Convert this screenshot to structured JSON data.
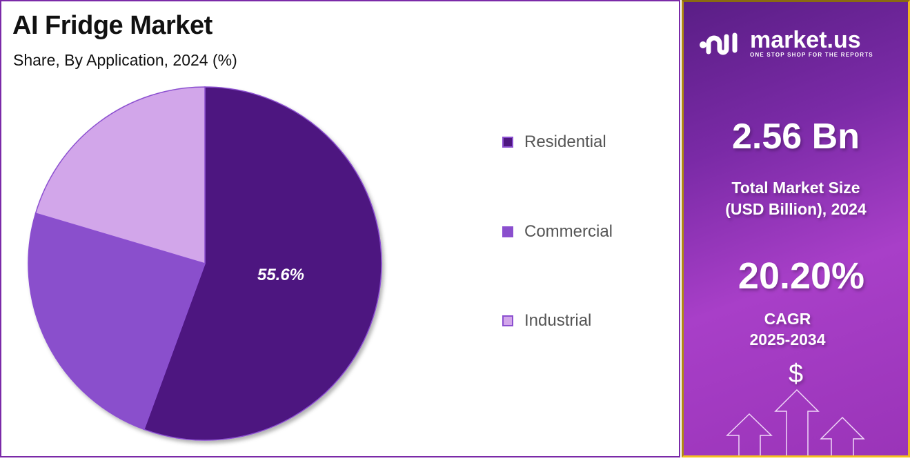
{
  "header": {
    "title": "AI Fridge Market",
    "subtitle": "Share, By Application, 2024 (%)"
  },
  "legend": [
    {
      "label": "Residential",
      "color": "#4e1780"
    },
    {
      "label": "Commercial",
      "color": "#8a4fcc"
    },
    {
      "label": "Industrial",
      "color": "#d2a6ea"
    }
  ],
  "pie_label": "55.6%",
  "sidebar": {
    "brand": "market.us",
    "tagline": "ONE STOP SHOP FOR THE REPORTS",
    "market_size": "2.56 Bn",
    "market_size_label_1": "Total Market Size",
    "market_size_label_2": "(USD Billion), 2024",
    "cagr": "20.20%",
    "cagr_label": "CAGR",
    "cagr_period": "2025-2034",
    "dollar": "$"
  },
  "colors": {
    "accent": "#7b2aa8",
    "gold_border": "#f0b820"
  },
  "chart_data": {
    "type": "pie",
    "title": "AI Fridge Market",
    "subtitle": "Share, By Application, 2024 (%)",
    "categories": [
      "Residential",
      "Commercial",
      "Industrial"
    ],
    "values": [
      55.6,
      24.0,
      20.4
    ],
    "labeled_values": {
      "Residential": 55.6
    },
    "colors": [
      "#4e1780",
      "#8a4fcc",
      "#d2a6ea"
    ],
    "legend_position": "right",
    "start_angle": "12 o'clock, clockwise"
  }
}
